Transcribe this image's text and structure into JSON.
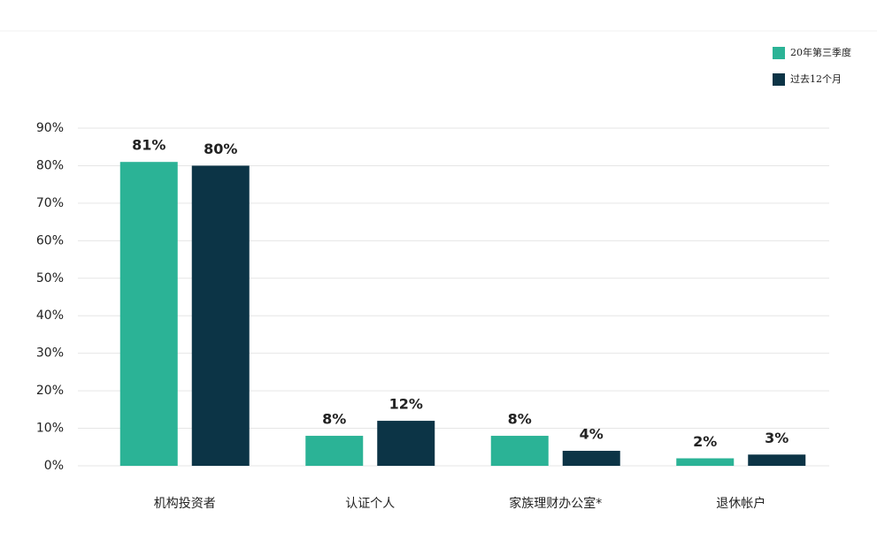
{
  "chart_data": {
    "type": "bar",
    "categories": [
      "机构投资者",
      "认证个人",
      "家族理财办公室*",
      "退休帐户"
    ],
    "series": [
      {
        "name": "20年第三季度",
        "color": "#2bb396",
        "values": [
          81,
          8,
          8,
          2
        ],
        "value_labels": [
          "81%",
          "8%",
          "8%",
          "2%"
        ]
      },
      {
        "name": "过去12个月",
        "color": "#0c3446",
        "values": [
          80,
          12,
          4,
          3
        ],
        "value_labels": [
          "80%",
          "12%",
          "4%",
          "3%"
        ]
      }
    ],
    "ylim": [
      0,
      90
    ],
    "yticks": [
      {
        "value": 0,
        "label": "0%"
      },
      {
        "value": 10,
        "label": "10%"
      },
      {
        "value": 20,
        "label": "20%"
      },
      {
        "value": 30,
        "label": "30%"
      },
      {
        "value": 40,
        "label": "40%"
      },
      {
        "value": 50,
        "label": "50%"
      },
      {
        "value": 60,
        "label": "60%"
      },
      {
        "value": 70,
        "label": "70%"
      },
      {
        "value": 80,
        "label": "80%"
      },
      {
        "value": 90,
        "label": "90%"
      }
    ],
    "grid": true,
    "legend": "upper right"
  }
}
